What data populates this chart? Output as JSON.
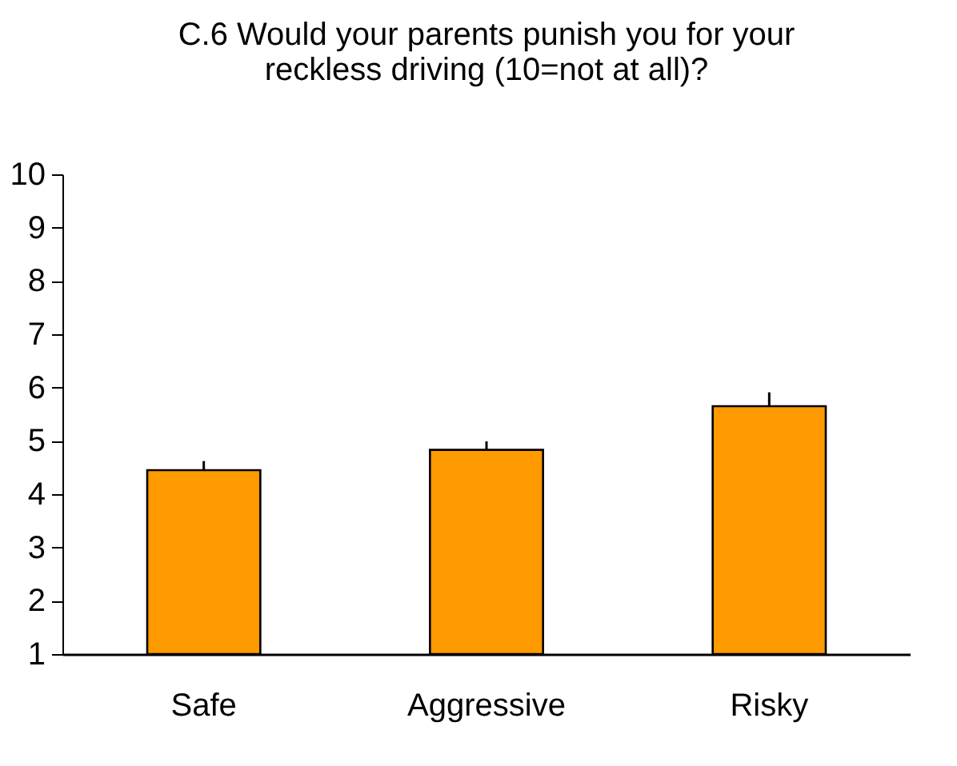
{
  "chart_data": {
    "type": "bar",
    "title": [
      "C.6 Would your parents punish you for your",
      "reckless driving (10=not at all)?"
    ],
    "categories": [
      "Safe",
      "Aggressive",
      "Risky"
    ],
    "values": [
      4.45,
      4.83,
      5.65
    ],
    "errors": [
      [
        4.45,
        4.62
      ],
      [
        4.83,
        4.99
      ],
      [
        5.65,
        5.91
      ]
    ],
    "color": "#ff9900",
    "ylim": [
      1,
      10
    ],
    "yticks": [
      1,
      2,
      3,
      4,
      5,
      6,
      7,
      8,
      9,
      10
    ],
    "grid": false
  }
}
